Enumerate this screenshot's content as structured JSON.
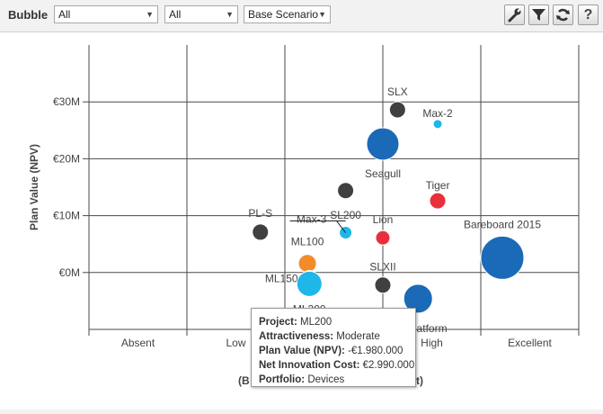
{
  "toolbar": {
    "title": "Bubble",
    "filter1": "All",
    "filter2": "All",
    "scenario": "Base Scenario",
    "icons": [
      "wrench-icon",
      "filter-icon",
      "refresh-icon",
      "help-icon"
    ],
    "help_label": "?"
  },
  "chart_data": {
    "type": "scatter",
    "ylabel": "Plan Value (NPV)",
    "xlabel": "(B ... t)",
    "xlabel_left": "(B",
    "xlabel_right": "t)",
    "x_categories": [
      "Absent",
      "Low",
      "Moderate",
      "High",
      "Excellent"
    ],
    "x_tick_labels": [
      "Absent",
      "Low",
      "",
      "High",
      "Excellent"
    ],
    "y_ticks": [
      {
        "value": 30,
        "label": "€30M"
      },
      {
        "value": 20,
        "label": "€20M"
      },
      {
        "value": 10,
        "label": "€10M"
      },
      {
        "value": 0,
        "label": "€0M"
      }
    ],
    "ylim": [
      -10,
      40
    ],
    "grid": true,
    "colors": {
      "gray": "#404040",
      "blue": "#1b6ab8",
      "cyan": "#1fb6e8",
      "red": "#e8303a",
      "orange": "#f28c28"
    },
    "points": [
      {
        "label": "SLX",
        "x": 3.15,
        "y": 28.6,
        "size": 9,
        "color": "gray"
      },
      {
        "label": "Max-2",
        "x": 3.56,
        "y": 26.1,
        "size": 5,
        "color": "cyan"
      },
      {
        "label": "Seagull",
        "x": 3.0,
        "y": 22.6,
        "size": 18,
        "color": "blue"
      },
      {
        "label": "SL200",
        "x": 2.62,
        "y": 14.4,
        "size": 9,
        "color": "gray"
      },
      {
        "label": "Tiger",
        "x": 3.56,
        "y": 12.6,
        "size": 9,
        "color": "red"
      },
      {
        "label": "PL-S",
        "x": 1.75,
        "y": 7.1,
        "size": 9,
        "color": "gray"
      },
      {
        "label": "Max-3",
        "x": 2.62,
        "y": 7.0,
        "size": 7,
        "color": "cyan"
      },
      {
        "label": "Lion",
        "x": 3.0,
        "y": 6.1,
        "size": 8,
        "color": "red"
      },
      {
        "label": "Bareboard 2015",
        "x": 4.22,
        "y": 2.6,
        "size": 24,
        "color": "blue"
      },
      {
        "label": "ML100",
        "x": 2.23,
        "y": 1.6,
        "size": 10,
        "color": "orange"
      },
      {
        "label": "ML150",
        "x": 2.25,
        "y": -0.9,
        "size": 8,
        "color": "cyan"
      },
      {
        "label": "ML200",
        "x": 2.25,
        "y": -1.98,
        "size": 14,
        "color": "cyan"
      },
      {
        "label": "SLXII",
        "x": 3.0,
        "y": -2.2,
        "size": 9,
        "color": "gray"
      },
      {
        "label": "Platform",
        "x": 3.36,
        "y": -4.6,
        "size": 16,
        "color": "blue"
      }
    ]
  },
  "tooltip": {
    "rows": [
      {
        "key": "Project:",
        "value": "ML200"
      },
      {
        "key": "Attractiveness:",
        "value": "Moderate"
      },
      {
        "key": "Plan Value (NPV):",
        "value": "-€1.980.000"
      },
      {
        "key": "Net Innovation Cost:",
        "value": "€2.990.000"
      },
      {
        "key": "Portfolio:",
        "value": "Devices"
      }
    ]
  }
}
